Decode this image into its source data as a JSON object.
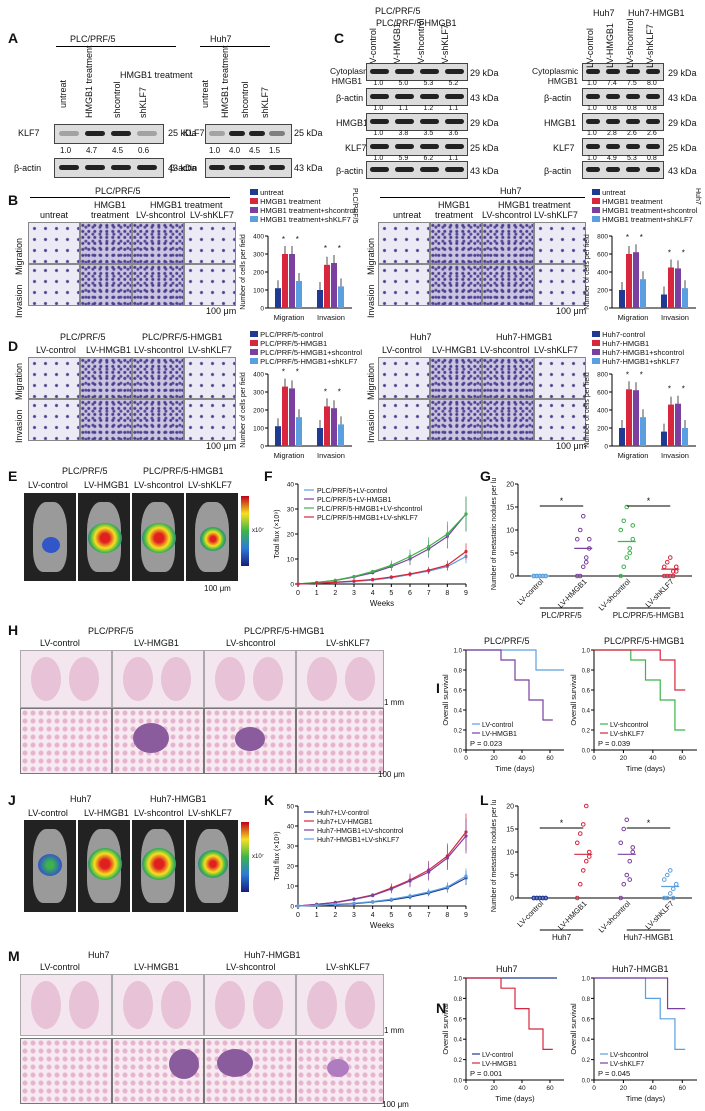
{
  "panels": [
    "A",
    "B",
    "C",
    "D",
    "E",
    "F",
    "G",
    "H",
    "I",
    "J",
    "K",
    "L",
    "M",
    "N"
  ],
  "a": {
    "left_title": "PLC/PRF/5",
    "right_title": "Huh7",
    "cols_left": [
      "untreat",
      "HMGB1 treatment",
      "shcontrol",
      "shKLF7"
    ],
    "treat_label": "HMGB1 treatment",
    "cols_right": [
      "untreat",
      "HMGB1 treatment",
      "shcontrol",
      "shKLF7"
    ],
    "rows": [
      "KLF7",
      "β-actin"
    ],
    "kda": [
      "25 kDa",
      "43 kDa"
    ],
    "vals_left": [
      "1.0",
      "4.7",
      "4.5",
      "0.6"
    ],
    "vals_right": [
      "1.0",
      "4.0",
      "4.5",
      "1.5"
    ]
  },
  "c": {
    "left_titles": [
      "PLC/PRF/5",
      "PLC/PRF/5-HMGB1"
    ],
    "right_titles": [
      "Huh7",
      "Huh7-HMGB1"
    ],
    "cols": [
      "LV-control",
      "LV-HMGB1",
      "LV-shcontrol",
      "LV-shKLF7"
    ],
    "rows": [
      "Cytoplasmic HMGB1",
      "β-actin",
      "HMGB1",
      "KLF7",
      "β-actin"
    ],
    "kda": [
      "29 kDa",
      "43 kDa",
      "29 kDa",
      "25 kDa",
      "43 kDa"
    ],
    "left_vals": [
      [
        "1.0",
        "5.0",
        "5.3",
        "5.2"
      ],
      [
        "1.0",
        "1.1",
        "1.2",
        "1.1"
      ],
      [
        "1.0",
        "3.8",
        "3.5",
        "3.6"
      ],
      [
        "1.0",
        "5.9",
        "6.2",
        "1.1"
      ]
    ],
    "right_vals": [
      [
        "1.0",
        "7.4",
        "7.5",
        "8.0"
      ],
      [
        "1.0",
        "0.8",
        "0.8",
        "0.8"
      ],
      [
        "1.0",
        "2.8",
        "2.6",
        "2.6"
      ],
      [
        "1.0",
        "4.9",
        "5.3",
        "0.8"
      ]
    ]
  },
  "b": {
    "left_title": "PLC/PRF/5",
    "right_title": "Huh7",
    "cols": [
      "untreat",
      "HMGB1 treatment",
      "LV-shcontrol",
      "LV-shKLF7"
    ],
    "treat_label": "HMGB1 treatment",
    "rows": [
      "Migration",
      "Invasion"
    ],
    "scale": "100 μm",
    "legend": [
      "untreat",
      "HMGB1 treatment",
      "HMGB1 treatment+shcontrol",
      "HMGB1 treatment+shKLF7"
    ],
    "ylabel": "Number of cells per field",
    "side_left": "PLC/PRF/5",
    "side_right": "Huh7"
  },
  "d": {
    "left_titles": [
      "PLC/PRF/5",
      "PLC/PRF/5-HMGB1"
    ],
    "right_titles": [
      "Huh7",
      "Huh7-HMGB1"
    ],
    "cols": [
      "LV-control",
      "LV-HMGB1",
      "LV-shcontrol",
      "LV-shKLF7"
    ],
    "rows": [
      "Migration",
      "Invasion"
    ],
    "scale": "100 μm",
    "legend_left": [
      "PLC/PRF/5-control",
      "PLC/PRF/5-HMGB1",
      "PLC/PRF/5-HMGB1+shcontrol",
      "PLC/PRF/5-HMGB1+shKLF7"
    ],
    "legend_right": [
      "Huh7-control",
      "Huh7-HMGB1",
      "Huh7-HMGB1+shcontrol",
      "Huh7-HMGB1+shKLF7"
    ],
    "ylabel": "Number of cells per field"
  },
  "e": {
    "titles": [
      "PLC/PRF/5",
      "PLC/PRF/5-HMGB1"
    ],
    "cols": [
      "LV-control",
      "LV-HMGB1",
      "LV-shcontrol",
      "LV-shKLF7"
    ],
    "scale": "100 μm",
    "colorbar_unit": "x10⁷"
  },
  "j": {
    "titles": [
      "Huh7",
      "Huh7-HMGB1"
    ],
    "cols": [
      "LV-control",
      "LV-HMGB1",
      "LV-shcontrol",
      "LV-shKLF7"
    ],
    "colorbar_unit": "x10⁷"
  },
  "g": {
    "ylabel": "Number of metastatic nodules per lung",
    "xcats": [
      "LV-control",
      "LV-HMGB1",
      "LV-shcontrol",
      "LV-shKLF7"
    ],
    "groups": [
      "PLC/PRF/5",
      "PLC/PRF/5-HMGB1"
    ],
    "star": "*"
  },
  "l": {
    "ylabel": "Number of metastatic nodules per lung",
    "xcats": [
      "LV-control",
      "LV-HMGB1",
      "LV-shcontrol",
      "LV-shKLF7"
    ],
    "groups": [
      "Huh7",
      "Huh7-HMGB1"
    ],
    "star": "*"
  },
  "h": {
    "titles": [
      "PLC/PRF/5",
      "PLC/PRF/5-HMGB1"
    ],
    "cols": [
      "LV-control",
      "LV-HMGB1",
      "LV-shcontrol",
      "LV-shKLF7"
    ],
    "scale_top": "1 mm",
    "scale_bottom": "100 μm"
  },
  "m": {
    "titles": [
      "Huh7",
      "Huh7-HMGB1"
    ],
    "cols": [
      "LV-control",
      "LV-HMGB1",
      "LV-shcontrol",
      "LV-shKLF7"
    ],
    "scale_top": "1 mm",
    "scale_bottom": "100 μm"
  },
  "i": {
    "left_title": "PLC/PRF/5",
    "right_title": "PLC/PRF/5-HMGB1",
    "ylabel": "Overall survival",
    "xlabel": "Time (days)",
    "left_legend": [
      "LV-control",
      "LV-HMGB1"
    ],
    "right_legend": [
      "LV-shcontrol",
      "LV-shKLF7"
    ],
    "left_p": "P = 0.023",
    "right_p": "P = 0.039"
  },
  "n": {
    "left_title": "Huh7",
    "right_title": "Huh7-HMGB1",
    "ylabel": "Overall survival",
    "xlabel": "Time (days)",
    "left_legend": [
      "LV-control",
      "LV-HMGB1"
    ],
    "right_legend": [
      "LV-shcontrol",
      "LV-shKLF7"
    ],
    "left_p": "P = 0.001",
    "right_p": "P = 0.045"
  },
  "colors": {
    "navy": "#1f3a93",
    "red": "#d7263d",
    "purple": "#7b3fa0",
    "lightblue": "#5aa0e0",
    "green": "#3cb44b"
  },
  "chart_data": [
    {
      "id": "B-left",
      "type": "bar",
      "title": "",
      "categories": [
        "Migration",
        "Invasion"
      ],
      "series": [
        {
          "name": "untreat",
          "values": [
            110,
            100
          ]
        },
        {
          "name": "HMGB1 treatment",
          "values": [
            300,
            240
          ]
        },
        {
          "name": "HMGB1 treatment+shcontrol",
          "values": [
            300,
            250
          ]
        },
        {
          "name": "HMGB1 treatment+shKLF7",
          "values": [
            150,
            120
          ]
        }
      ],
      "ylabel": "Number of cells per field",
      "ylim": [
        0,
        400
      ],
      "yticks": [
        0,
        100,
        200,
        300,
        400
      ]
    },
    {
      "id": "B-right",
      "type": "bar",
      "title": "",
      "categories": [
        "Migration",
        "Invasion"
      ],
      "series": [
        {
          "name": "untreat",
          "values": [
            200,
            150
          ]
        },
        {
          "name": "HMGB1 treatment",
          "values": [
            600,
            450
          ]
        },
        {
          "name": "HMGB1 treatment+shcontrol",
          "values": [
            620,
            440
          ]
        },
        {
          "name": "HMGB1 treatment+shKLF7",
          "values": [
            320,
            220
          ]
        }
      ],
      "ylabel": "Number of cells per field",
      "ylim": [
        0,
        800
      ],
      "yticks": [
        0,
        200,
        400,
        600,
        800
      ]
    },
    {
      "id": "D-left",
      "type": "bar",
      "title": "",
      "categories": [
        "Migration",
        "Invasion"
      ],
      "series": [
        {
          "name": "PLC/PRF/5-control",
          "values": [
            110,
            100
          ]
        },
        {
          "name": "PLC/PRF/5-HMGB1",
          "values": [
            330,
            220
          ]
        },
        {
          "name": "PLC/PRF/5-HMGB1+shcontrol",
          "values": [
            320,
            210
          ]
        },
        {
          "name": "PLC/PRF/5-HMGB1+shKLF7",
          "values": [
            160,
            120
          ]
        }
      ],
      "ylabel": "Number of cells per field",
      "ylim": [
        0,
        400
      ],
      "yticks": [
        0,
        100,
        200,
        300,
        400
      ]
    },
    {
      "id": "D-right",
      "type": "bar",
      "title": "",
      "categories": [
        "Migration",
        "Invasion"
      ],
      "series": [
        {
          "name": "Huh7-control",
          "values": [
            200,
            160
          ]
        },
        {
          "name": "Huh7-HMGB1",
          "values": [
            630,
            460
          ]
        },
        {
          "name": "Huh7-HMGB1+shcontrol",
          "values": [
            620,
            470
          ]
        },
        {
          "name": "Huh7-HMGB1+shKLF7",
          "values": [
            320,
            200
          ]
        }
      ],
      "ylabel": "Number of cells per field",
      "ylim": [
        0,
        800
      ],
      "yticks": [
        0,
        200,
        400,
        600,
        800
      ]
    },
    {
      "id": "F",
      "type": "line",
      "title": "",
      "x": [
        0,
        1,
        2,
        3,
        4,
        5,
        6,
        7,
        8,
        9
      ],
      "series": [
        {
          "name": "PLC/PRF/5+LV-control",
          "values": [
            0,
            0.3,
            0.6,
            1.0,
            1.6,
            2.5,
            3.8,
            5.2,
            7,
            11
          ]
        },
        {
          "name": "PLC/PRF/5+LV-HMGB1",
          "values": [
            0,
            0.6,
            1.4,
            2.8,
            4.5,
            7,
            10,
            14,
            19,
            28
          ]
        },
        {
          "name": "PLC/PRF/5-HMGB1+LV-shcontrol",
          "values": [
            0,
            0.6,
            1.5,
            3,
            5,
            7.5,
            11,
            15,
            20,
            28
          ]
        },
        {
          "name": "PLC/PRF/5-HMGB1+LV-shKLF7",
          "values": [
            0,
            0.3,
            0.7,
            1.2,
            1.8,
            2.8,
            4,
            5.5,
            7.5,
            13
          ]
        }
      ],
      "xlabel": "Weeks",
      "ylabel": "Total flux (×10⁹)",
      "ylim": [
        0,
        40
      ],
      "yticks": [
        0,
        10,
        20,
        30,
        40
      ]
    },
    {
      "id": "K",
      "type": "line",
      "title": "",
      "x": [
        0,
        1,
        2,
        3,
        4,
        5,
        6,
        7,
        8,
        9
      ],
      "series": [
        {
          "name": "Huh7+LV-control",
          "values": [
            0,
            0.3,
            0.7,
            1.2,
            2,
            3,
            4.5,
            6.5,
            9,
            14
          ]
        },
        {
          "name": "Huh7+LV-HMGB1",
          "values": [
            0,
            0.8,
            1.8,
            3.5,
            5.5,
            9,
            13,
            18,
            25,
            37
          ]
        },
        {
          "name": "Huh7-HMGB1+LV-shcontrol",
          "values": [
            0,
            0.8,
            1.7,
            3.3,
            5.2,
            8.5,
            12.5,
            17,
            24,
            35
          ]
        },
        {
          "name": "Huh7-HMGB1+LV-shKLF7",
          "values": [
            0,
            0.3,
            0.8,
            1.4,
            2.2,
            3.4,
            5,
            7,
            9.5,
            15
          ]
        }
      ],
      "xlabel": "Weeks",
      "ylabel": "Total flux (×10⁹)",
      "ylim": [
        0,
        50
      ],
      "yticks": [
        0,
        10,
        20,
        30,
        40,
        50
      ]
    },
    {
      "id": "G",
      "type": "scatter",
      "title": "",
      "categories": [
        "LV-control",
        "LV-HMGB1",
        "LV-shcontrol",
        "LV-shKLF7"
      ],
      "means": [
        0,
        6,
        7.5,
        1.5
      ],
      "points": [
        [
          0,
          0,
          0,
          0,
          0,
          0,
          0,
          0,
          0,
          0
        ],
        [
          0,
          0,
          2,
          4,
          6,
          8,
          10,
          13,
          3,
          8
        ],
        [
          0,
          2,
          4,
          6,
          8,
          10,
          12,
          15,
          5,
          11
        ],
        [
          0,
          0,
          0,
          1,
          1,
          2,
          3,
          4,
          0,
          2
        ]
      ],
      "ylabel": "Number of metastatic nodules per lung",
      "ylim": [
        0,
        20
      ],
      "yticks": [
        0,
        5,
        10,
        15,
        20
      ]
    },
    {
      "id": "L",
      "type": "scatter",
      "title": "",
      "categories": [
        "LV-control",
        "LV-HMGB1",
        "LV-shcontrol",
        "LV-shKLF7"
      ],
      "means": [
        0,
        9.5,
        9.5,
        2.5
      ],
      "points": [
        [
          0,
          0,
          0,
          0,
          0,
          0,
          0,
          0,
          0,
          0
        ],
        [
          0,
          3,
          6,
          8,
          10,
          12,
          14,
          16,
          20,
          9
        ],
        [
          0,
          3,
          5,
          8,
          10,
          12,
          15,
          17,
          4,
          11
        ],
        [
          0,
          0,
          1,
          2,
          3,
          4,
          5,
          6,
          0,
          3
        ]
      ],
      "ylabel": "Number of metastatic nodules per lung",
      "ylim": [
        0,
        20
      ],
      "yticks": [
        0,
        5,
        10,
        15,
        20
      ]
    },
    {
      "id": "I-left",
      "type": "line",
      "title": "PLC/PRF/5",
      "series": [
        {
          "name": "LV-control",
          "x": [
            0,
            50,
            50,
            70
          ],
          "values": [
            1,
            1,
            0.8,
            0.8
          ]
        },
        {
          "name": "LV-HMGB1",
          "x": [
            0,
            25,
            25,
            35,
            35,
            45,
            45,
            55,
            55,
            62
          ],
          "values": [
            1,
            1,
            0.9,
            0.9,
            0.7,
            0.7,
            0.5,
            0.5,
            0.3,
            0.3
          ]
        }
      ],
      "xlabel": "Time (days)",
      "ylabel": "Overall survival",
      "ylim": [
        0,
        1
      ],
      "xlim": [
        0,
        70
      ]
    },
    {
      "id": "I-right",
      "type": "line",
      "title": "PLC/PRF/5-HMGB1",
      "series": [
        {
          "name": "LV-shcontrol",
          "x": [
            0,
            25,
            25,
            35,
            35,
            45,
            45,
            55,
            55,
            62
          ],
          "values": [
            1,
            1,
            0.9,
            0.9,
            0.7,
            0.7,
            0.5,
            0.5,
            0.2,
            0.2
          ]
        },
        {
          "name": "LV-shKLF7",
          "x": [
            0,
            45,
            45,
            55,
            55,
            62
          ],
          "values": [
            1,
            1,
            0.9,
            0.9,
            0.6,
            0.6
          ]
        }
      ],
      "xlabel": "Time (days)",
      "ylabel": "Overall survival",
      "ylim": [
        0,
        1
      ],
      "xlim": [
        0,
        70
      ]
    },
    {
      "id": "N-left",
      "type": "line",
      "title": "Huh7",
      "series": [
        {
          "name": "LV-control",
          "x": [
            0,
            65
          ],
          "values": [
            1,
            1
          ]
        },
        {
          "name": "LV-HMGB1",
          "x": [
            0,
            25,
            25,
            35,
            35,
            45,
            45,
            55,
            55,
            62
          ],
          "values": [
            1,
            1,
            0.9,
            0.9,
            0.7,
            0.7,
            0.5,
            0.5,
            0.3,
            0.3
          ]
        }
      ],
      "xlabel": "Time (days)",
      "ylabel": "Overall survival",
      "ylim": [
        0,
        1
      ],
      "xlim": [
        0,
        70
      ]
    },
    {
      "id": "N-right",
      "type": "line",
      "title": "Huh7-HMGB1",
      "series": [
        {
          "name": "LV-shcontrol",
          "x": [
            0,
            35,
            35,
            45,
            45,
            55,
            55,
            62
          ],
          "values": [
            1,
            1,
            0.8,
            0.8,
            0.6,
            0.6,
            0.3,
            0.3
          ]
        },
        {
          "name": "LV-shKLF7",
          "x": [
            0,
            50,
            50,
            62
          ],
          "values": [
            1,
            1,
            0.7,
            0.7
          ]
        }
      ],
      "xlabel": "Time (days)",
      "ylabel": "Overall survival",
      "ylim": [
        0,
        1
      ],
      "xlim": [
        0,
        70
      ]
    }
  ]
}
